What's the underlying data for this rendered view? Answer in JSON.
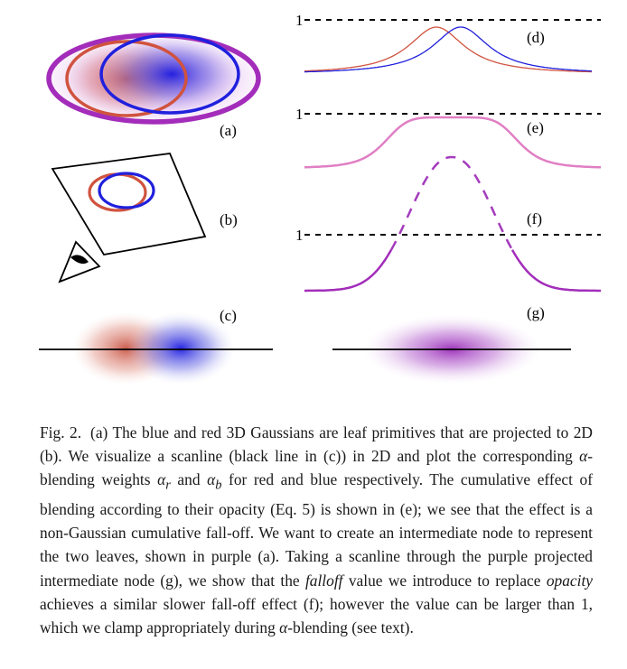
{
  "figure": {
    "panel_labels": {
      "a": "(a)",
      "b": "(b)",
      "c": "(c)",
      "d": "(d)",
      "e": "(e)",
      "f": "(f)",
      "g": "(g)"
    },
    "y_marks": {
      "d": "1",
      "e": "1",
      "f": "1"
    },
    "colors": {
      "red": "#d0533f",
      "blue": "#2020dd",
      "purple": "#a32dba",
      "pink": "#e07fc4",
      "dashed_purple": "#a43bbd"
    }
  },
  "caption": {
    "fig_label": "Fig. 2.",
    "p1": "(a) The blue and red 3D Gaussians are leaf primitives that are projected to 2D (b). We visualize a scanline (black line in (c)) in 2D and plot the corresponding ",
    "alpha_sym": "α",
    "p2": "-blending weights ",
    "alpha_r_sub": "r",
    "and_text": " and ",
    "alpha_b_sub": "b",
    "p3": " for red and blue respectively. The cumulative effect of blending according to their opacity (Eq. 5) is shown in (e); we see that the effect is a non-Gaussian cumulative fall-off. We want to create an intermediate node to represent the two leaves, shown in purple (a). Taking a scanline through the purple projected intermediate node (g), we show that the ",
    "falloff_word": "falloff",
    "p4": " value we introduce to replace ",
    "opacity_word": "opacity",
    "p5": " achieves a similar slower fall-off effect (f); however the value can be larger than 1, which we clamp appropriately during ",
    "p6": "-blending (see text)."
  }
}
